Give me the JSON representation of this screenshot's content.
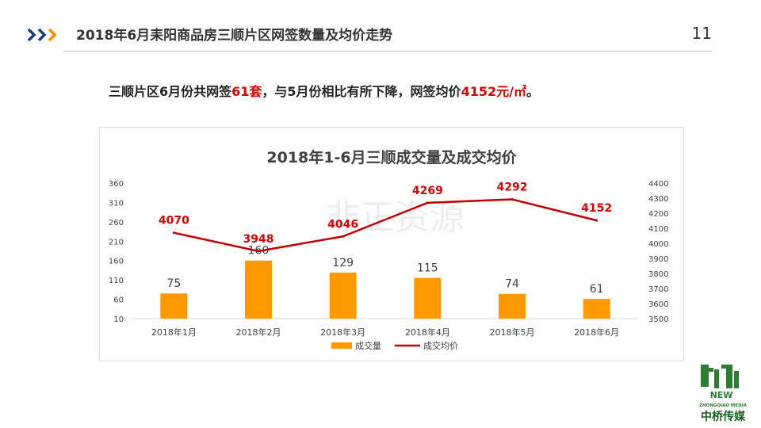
{
  "header": {
    "title": "2018年6月耒阳商品房三顺片区网签数量及均价走势",
    "page_number": "11"
  },
  "summary": {
    "part1": "三顺片区6月份共网签",
    "highlight1": "61套",
    "part2": "，与5月份相比有所下降，网签均价",
    "highlight2": "4152元/㎡",
    "part3": "。"
  },
  "watermark": {
    "text": "非正资源"
  },
  "colors": {
    "bar": "#ff9900",
    "line": "#c00000",
    "label_red": "#e00000",
    "brand_green": "#2e7d32",
    "chevron": "#1f3d7a",
    "chevron_accent": "#ff8c00"
  },
  "chart_data": {
    "type": "bar",
    "title": "2018年1-6月三顺成交量及成交均价",
    "categories": [
      "2018年1月",
      "2018年2月",
      "2018年3月",
      "2018年4月",
      "2018年5月",
      "2018年6月"
    ],
    "series": [
      {
        "name": "成交量",
        "type": "bar",
        "axis": "left",
        "values": [
          75,
          160,
          129,
          115,
          74,
          61
        ]
      },
      {
        "name": "成交均价",
        "type": "line",
        "axis": "right",
        "values": [
          4070,
          3948,
          4046,
          4269,
          4292,
          4152
        ]
      }
    ],
    "y_left": {
      "ylim": [
        10,
        360
      ],
      "ticks": [
        10,
        60,
        110,
        160,
        210,
        260,
        310,
        360
      ]
    },
    "y_right": {
      "ylim": [
        3500,
        4400
      ],
      "ticks": [
        3500,
        3600,
        3700,
        3800,
        3900,
        4000,
        4100,
        4200,
        4300,
        4400
      ]
    },
    "grid": false,
    "legend_position": "bottom"
  },
  "logo": {
    "line1": "NEW",
    "line2": "ZHONGQIAO MEDIA",
    "line3": "中桥传媒"
  }
}
